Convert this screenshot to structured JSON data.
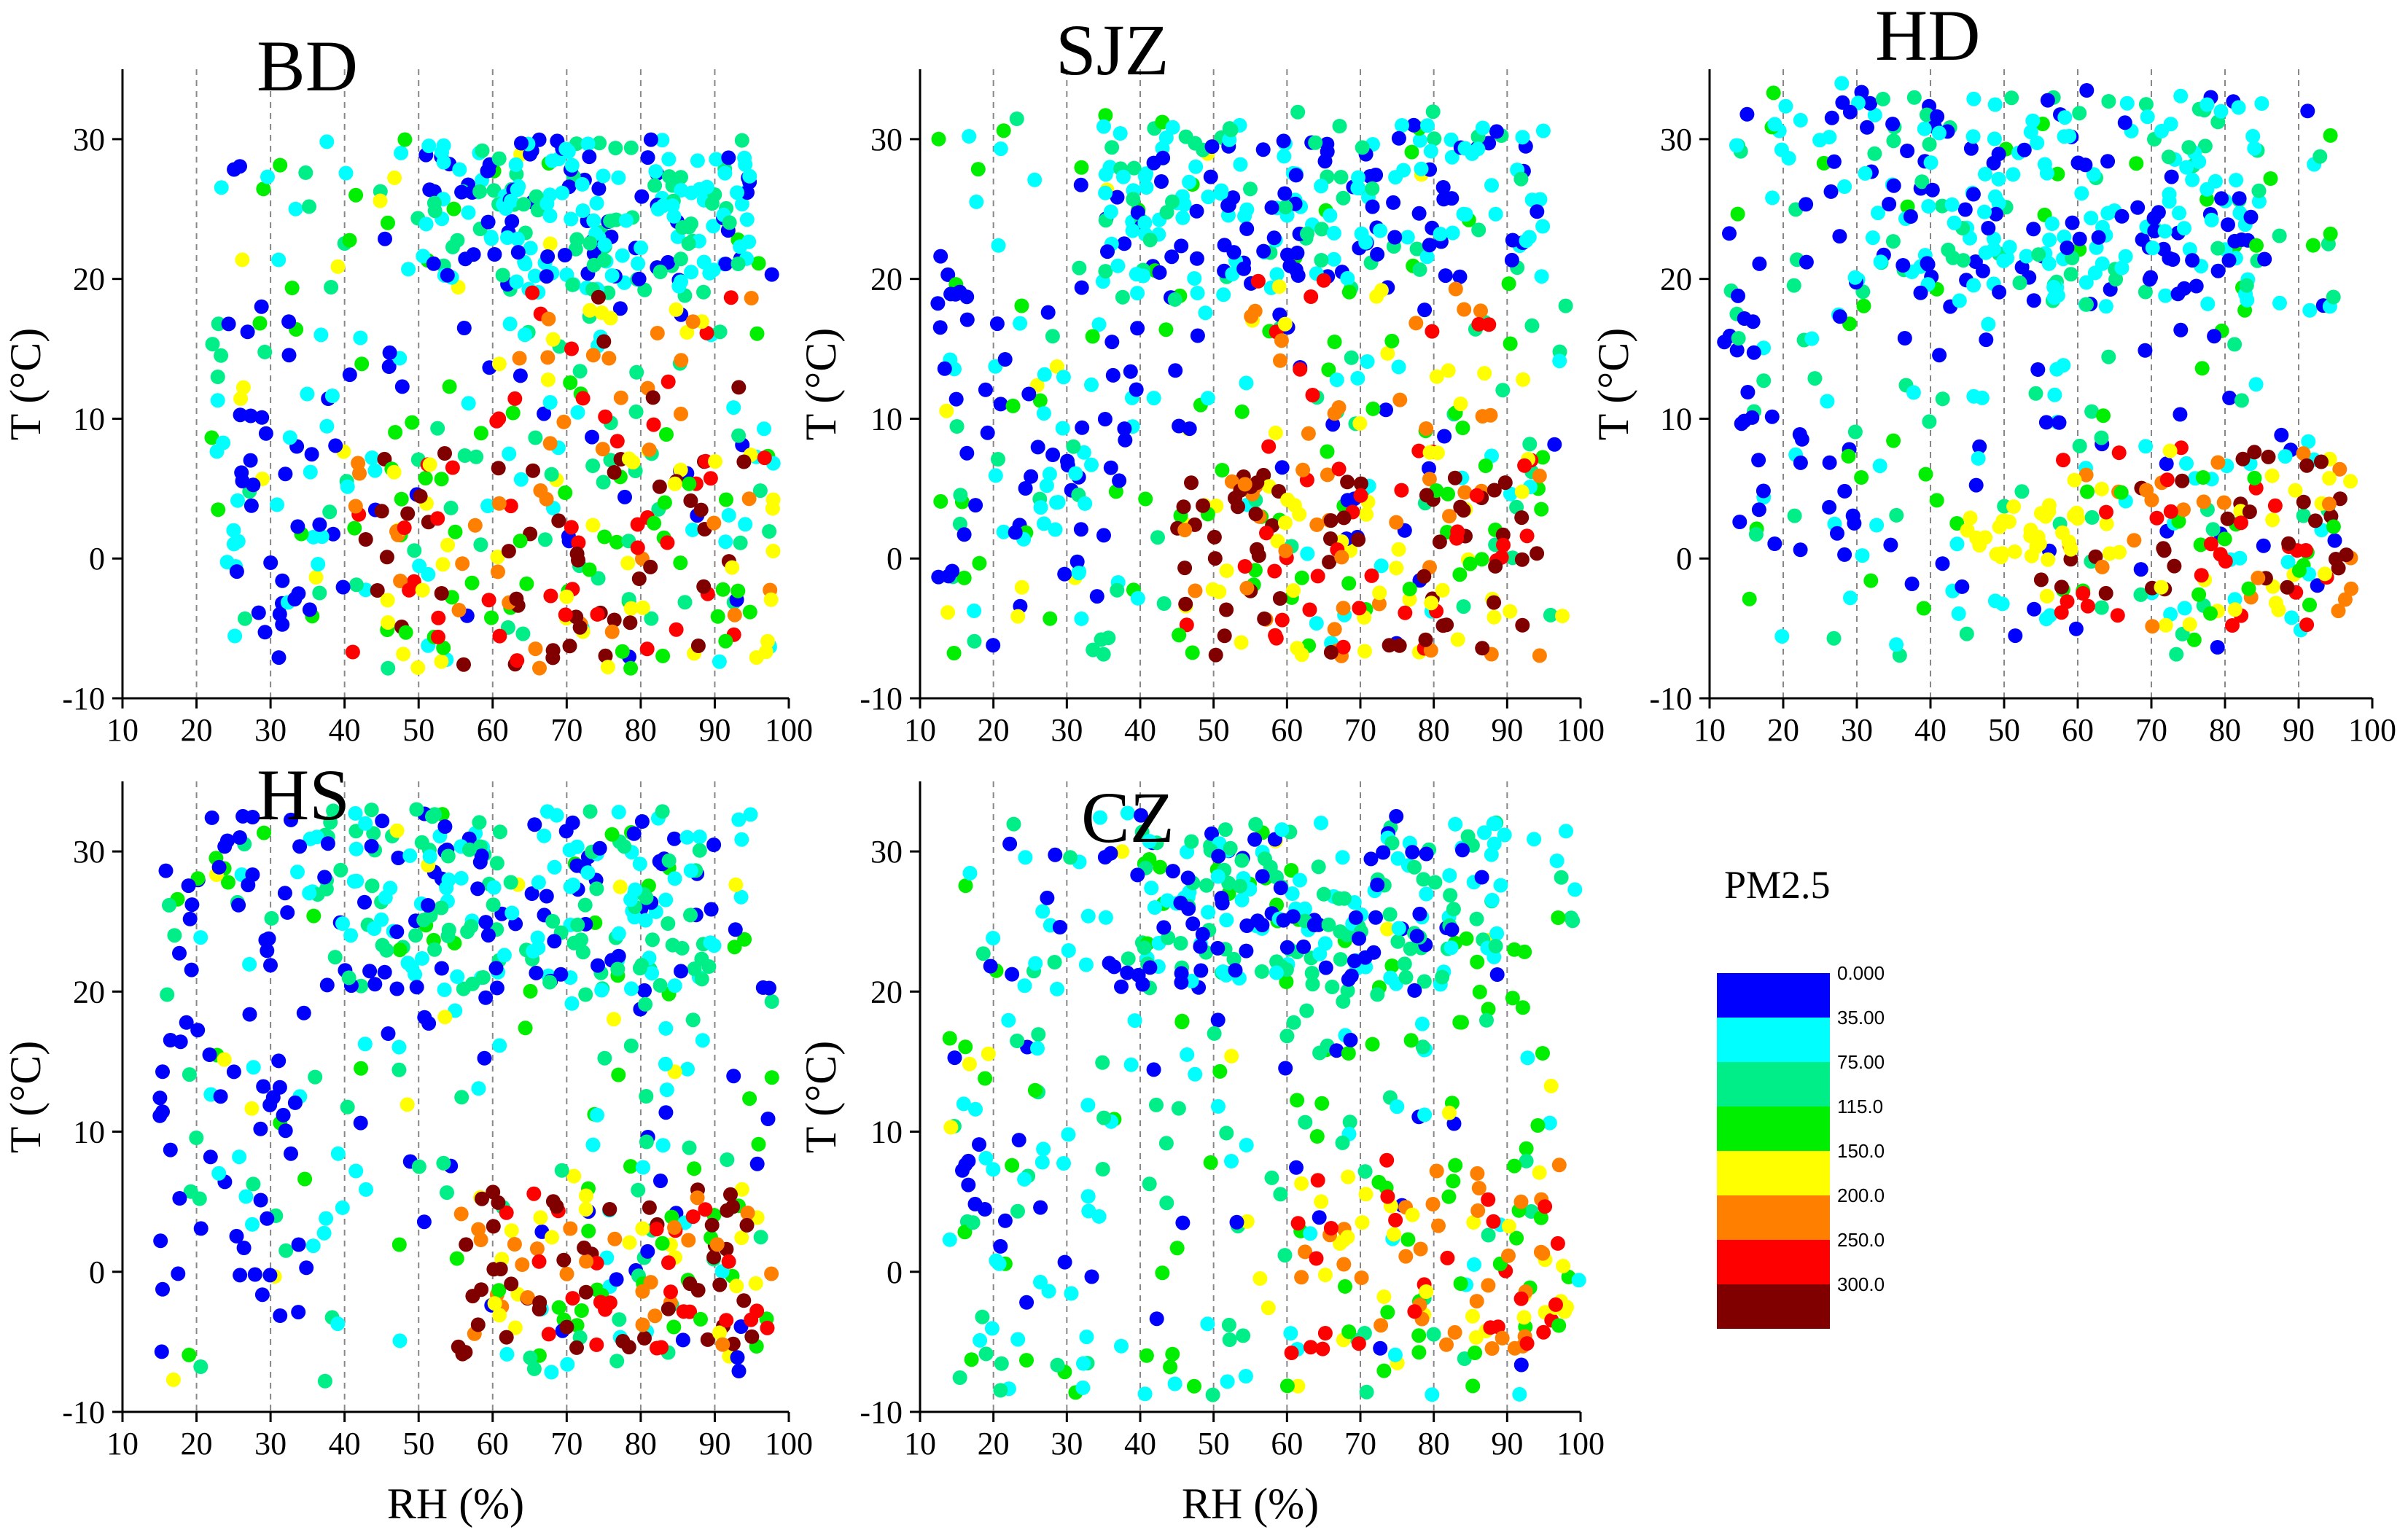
{
  "chart_data": {
    "type": "scatter",
    "color_variable": "PM2.5",
    "colorbar": {
      "title": "PM2.5",
      "labels": [
        "0.000",
        "35.00",
        "75.00",
        "115.0",
        "150.0",
        "200.0",
        "250.0",
        "300.0"
      ],
      "bands": [
        {
          "from": 0,
          "to": 35,
          "color": "#0000ff"
        },
        {
          "from": 35,
          "to": 75,
          "color": "#00ffff"
        },
        {
          "from": 75,
          "to": 115,
          "color": "#00ee88"
        },
        {
          "from": 115,
          "to": 150,
          "color": "#00ee00"
        },
        {
          "from": 150,
          "to": 200,
          "color": "#ffff00"
        },
        {
          "from": 200,
          "to": 250,
          "color": "#ff8000"
        },
        {
          "from": 250,
          "to": 300,
          "color": "#ff0000"
        },
        {
          "from": 300,
          "to": 400,
          "color": "#800000"
        }
      ]
    },
    "panels": [
      {
        "title": "BD",
        "xlabel": "",
        "ylabel": "T (°C)",
        "xlim": [
          10,
          100
        ],
        "ylim": [
          -10,
          35
        ],
        "xticks": [
          10,
          20,
          30,
          40,
          50,
          60,
          70,
          80,
          90,
          100
        ],
        "xtick_labels": [
          "10",
          "20",
          "30",
          "40",
          "50",
          "60",
          "70",
          "80",
          "90",
          "100"
        ],
        "yticks": [
          -10,
          0,
          10,
          20,
          30
        ],
        "ytick_labels": [
          "-10",
          "0",
          "10",
          "20",
          "30"
        ],
        "gridlines_x": [
          20,
          30,
          40,
          50,
          60,
          70,
          80,
          90
        ],
        "clusters": [
          {
            "rh": [
              22,
              98
            ],
            "t": [
              -8,
              30
            ],
            "n": 230,
            "pm": [
              5,
              160
            ]
          },
          {
            "rh": [
              50,
              95
            ],
            "t": [
              19,
              30
            ],
            "n": 200,
            "pm": [
              10,
              100
            ]
          },
          {
            "rh": [
              40,
              98
            ],
            "t": [
              -8,
              8
            ],
            "n": 170,
            "pm": [
              100,
              380
            ]
          },
          {
            "rh": [
              60,
              95
            ],
            "t": [
              8,
              20
            ],
            "n": 40,
            "pm": [
              150,
              320
            ]
          },
          {
            "rh": [
              25,
              40
            ],
            "t": [
              -6,
              12
            ],
            "n": 35,
            "pm": [
              0,
              60
            ]
          }
        ]
      },
      {
        "title": "SJZ",
        "xlabel": "",
        "ylabel": "T (°C)",
        "xlim": [
          10,
          100
        ],
        "ylim": [
          -10,
          35
        ],
        "xticks": [
          10,
          20,
          30,
          40,
          50,
          60,
          70,
          80,
          90,
          100
        ],
        "xtick_labels": [
          "10",
          "20",
          "30",
          "40",
          "50",
          "60",
          "70",
          "80",
          "90",
          "100"
        ],
        "yticks": [
          -10,
          0,
          10,
          20,
          30
        ],
        "ytick_labels": [
          "-10",
          "0",
          "10",
          "20",
          "30"
        ],
        "gridlines_x": [
          20,
          30,
          40,
          50,
          60,
          70,
          80,
          90
        ],
        "clusters": [
          {
            "rh": [
              12,
              98
            ],
            "t": [
              -7,
              32
            ],
            "n": 230,
            "pm": [
              0,
              160
            ]
          },
          {
            "rh": [
              35,
              95
            ],
            "t": [
              20,
              31
            ],
            "n": 200,
            "pm": [
              0,
              100
            ]
          },
          {
            "rh": [
              45,
              95
            ],
            "t": [
              -7,
              6
            ],
            "n": 160,
            "pm": [
              120,
              400
            ]
          },
          {
            "rh": [
              55,
              95
            ],
            "t": [
              6,
              20
            ],
            "n": 50,
            "pm": [
              140,
              300
            ]
          },
          {
            "rh": [
              12,
              40
            ],
            "t": [
              -3,
              20
            ],
            "n": 60,
            "pm": [
              0,
              50
            ]
          }
        ]
      },
      {
        "title": "HD",
        "xlabel": "",
        "ylabel": "T (°C)",
        "xlim": [
          10,
          100
        ],
        "ylim": [
          -10,
          35
        ],
        "xticks": [
          10,
          20,
          30,
          40,
          50,
          60,
          70,
          80,
          90,
          100
        ],
        "xtick_labels": [
          "10",
          "20",
          "30",
          "40",
          "50",
          "60",
          "70",
          "80",
          "90",
          "100"
        ],
        "yticks": [
          -10,
          0,
          10,
          20,
          30
        ],
        "ytick_labels": [
          "-10",
          "0",
          "10",
          "20",
          "30"
        ],
        "gridlines_x": [
          20,
          30,
          40,
          50,
          60,
          70,
          80,
          90
        ],
        "clusters": [
          {
            "rh": [
              12,
              95
            ],
            "t": [
              -7,
              34
            ],
            "n": 250,
            "pm": [
              0,
              140
            ]
          },
          {
            "rh": [
              30,
              85
            ],
            "t": [
              18,
              33
            ],
            "n": 200,
            "pm": [
              0,
              90
            ]
          },
          {
            "rh": [
              55,
              98
            ],
            "t": [
              -5,
              8
            ],
            "n": 120,
            "pm": [
              120,
              400
            ]
          },
          {
            "rh": [
              45,
              60
            ],
            "t": [
              0,
              4
            ],
            "n": 30,
            "pm": [
              150,
              200
            ]
          },
          {
            "rh": [
              12,
              30
            ],
            "t": [
              0,
              33
            ],
            "n": 40,
            "pm": [
              0,
              40
            ]
          }
        ]
      },
      {
        "title": "HS",
        "xlabel": "RH (%)",
        "ylabel": "T (°C)",
        "xlim": [
          10,
          100
        ],
        "ylim": [
          -10,
          35
        ],
        "xticks": [
          10,
          20,
          30,
          40,
          50,
          60,
          70,
          80,
          90,
          100
        ],
        "xtick_labels": [
          "10",
          "20",
          "30",
          "40",
          "50",
          "60",
          "70",
          "80",
          "90",
          "100"
        ],
        "yticks": [
          -10,
          0,
          10,
          20,
          30
        ],
        "ytick_labels": [
          "-10",
          "0",
          "10",
          "20",
          "30"
        ],
        "gridlines_x": [
          20,
          30,
          40,
          50,
          60,
          70,
          80,
          90
        ],
        "clusters": [
          {
            "rh": [
              15,
              98
            ],
            "t": [
              -8,
              33
            ],
            "n": 260,
            "pm": [
              0,
              160
            ]
          },
          {
            "rh": [
              35,
              90
            ],
            "t": [
              20,
              33
            ],
            "n": 200,
            "pm": [
              0,
              110
            ]
          },
          {
            "rh": [
              55,
              98
            ],
            "t": [
              -6,
              6
            ],
            "n": 130,
            "pm": [
              130,
              400
            ]
          },
          {
            "rh": [
              15,
              35
            ],
            "t": [
              -3,
              33
            ],
            "n": 50,
            "pm": [
              0,
              35
            ]
          }
        ]
      },
      {
        "title": "CZ",
        "xlabel": "RH (%)",
        "ylabel": "T (°C)",
        "xlim": [
          10,
          100
        ],
        "ylim": [
          -10,
          35
        ],
        "xticks": [
          10,
          20,
          30,
          40,
          50,
          60,
          70,
          80,
          90,
          100
        ],
        "xtick_labels": [
          "10",
          "20",
          "30",
          "40",
          "50",
          "60",
          "70",
          "80",
          "90",
          "100"
        ],
        "yticks": [
          -10,
          0,
          10,
          20,
          30
        ],
        "ytick_labels": [
          "-10",
          "0",
          "10",
          "20",
          "30"
        ],
        "gridlines_x": [
          20,
          30,
          40,
          50,
          60,
          70,
          80,
          90
        ],
        "clusters": [
          {
            "rh": [
              14,
              100
            ],
            "t": [
              -9,
              33
            ],
            "n": 280,
            "pm": [
              20,
              160
            ]
          },
          {
            "rh": [
              40,
              90
            ],
            "t": [
              20,
              32
            ],
            "n": 150,
            "pm": [
              20,
              115
            ]
          },
          {
            "rh": [
              60,
              100
            ],
            "t": [
              -6,
              8
            ],
            "n": 100,
            "pm": [
              130,
              280
            ]
          },
          {
            "rh": [
              35,
              80
            ],
            "t": [
              20,
              30
            ],
            "n": 50,
            "pm": [
              0,
              35
            ]
          },
          {
            "rh": [
              14,
              35
            ],
            "t": [
              -3,
              30
            ],
            "n": 40,
            "pm": [
              0,
              80
            ]
          }
        ]
      }
    ]
  }
}
